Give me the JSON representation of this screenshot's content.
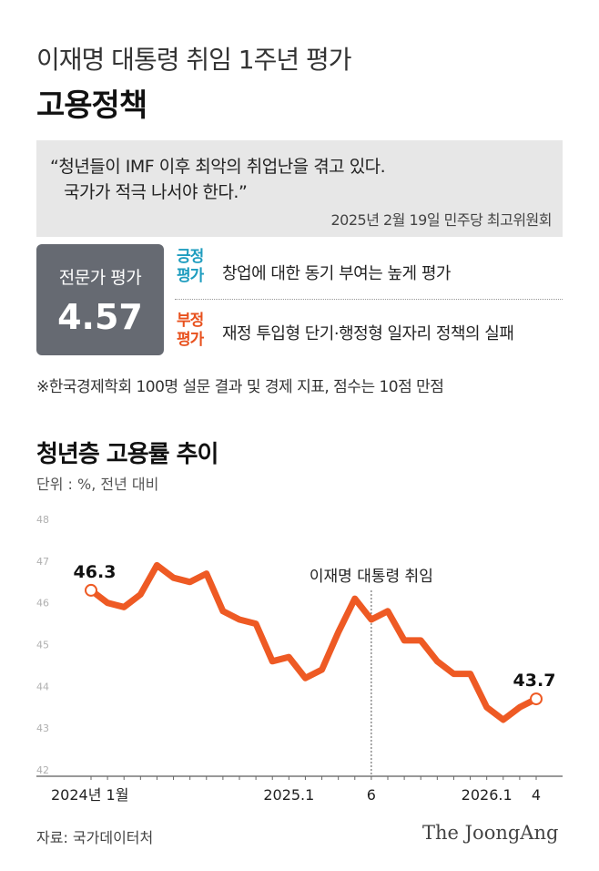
{
  "header": {
    "supertitle": "이재명 대통령 취임 1주년 평가",
    "title": "고용정책"
  },
  "quote": {
    "line1": "“청년들이 IMF 이후 최악의 취업난을 겪고 있다.",
    "line2": "국가가 적극 나서야 한다.”",
    "source": "2025년 2월 19일 민주당 최고위원회"
  },
  "score": {
    "label": "전문가 평가",
    "value": "4.57"
  },
  "evaluation": {
    "positive_tag": "긍정 평가",
    "positive_text": "창업에 대한 동기 부여는 높게 평가",
    "negative_tag": "부정 평가",
    "negative_text": "재정 투입형 단기·행정형 일자리 정책의 실패"
  },
  "footnote": "※한국경제학회 100명 설문 결과 및 경제 지표, 점수는 10점 만점",
  "chart_title": "청년층 고용률 추이",
  "unit": "단위 : %, 전년 대비",
  "colors": {
    "line": "#ee5a24",
    "positive": "#1f9dbf",
    "negative": "#e8511e",
    "score_box": "#666a72",
    "quote_box": "#e7e7e7"
  },
  "chart_data": {
    "type": "line",
    "x": [
      "2024-01",
      "2024-02",
      "2024-03",
      "2024-04",
      "2024-05",
      "2024-06",
      "2024-07",
      "2024-08",
      "2024-09",
      "2024-10",
      "2024-11",
      "2024-12",
      "2025-01",
      "2025-02",
      "2025-03",
      "2025-04",
      "2025-05",
      "2025-06",
      "2025-07",
      "2025-08",
      "2025-09",
      "2025-10",
      "2025-11",
      "2025-12",
      "2026-01",
      "2026-02",
      "2026-03",
      "2026-04"
    ],
    "values": [
      46.3,
      46.0,
      45.9,
      46.2,
      46.9,
      46.6,
      46.5,
      46.7,
      45.8,
      45.6,
      45.5,
      44.6,
      44.7,
      44.2,
      44.4,
      45.3,
      46.1,
      45.6,
      45.8,
      45.1,
      45.1,
      44.6,
      44.3,
      44.3,
      43.5,
      43.2,
      43.5,
      43.7
    ],
    "ylim": [
      42,
      48
    ],
    "yticks": [
      "42",
      "43",
      "44",
      "45",
      "46",
      "47",
      "48"
    ],
    "xtick_labels": [
      {
        "at": "2024-01",
        "label": "2024년 1월"
      },
      {
        "at": "2025-01",
        "label": "2025.1"
      },
      {
        "at": "2025-06",
        "label": "6"
      },
      {
        "at": "2026-01",
        "label": "2026.1"
      },
      {
        "at": "2026-04",
        "label": "4"
      }
    ],
    "data_labels": [
      {
        "at": "2024-01",
        "label": "46.3"
      },
      {
        "at": "2026-04",
        "label": "43.7"
      }
    ],
    "annotation": {
      "at": "2025-06",
      "label": "이재명 대통령 취임"
    },
    "grid": false
  },
  "footer": {
    "source": "자료: 국가데이터처",
    "brand": "The JoongAng"
  }
}
